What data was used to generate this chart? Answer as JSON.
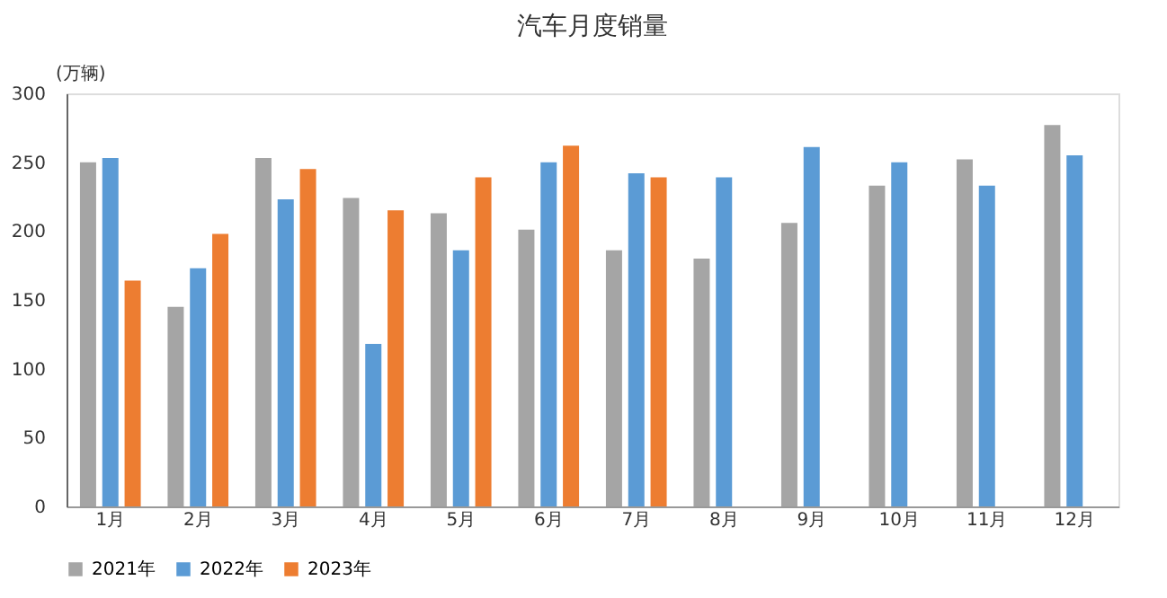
{
  "chart_data": {
    "type": "bar",
    "title": "汽车月度销量",
    "ylabel": "(万辆)",
    "categories": [
      "1月",
      "2月",
      "3月",
      "4月",
      "5月",
      "6月",
      "7月",
      "8月",
      "9月",
      "10月",
      "11月",
      "12月"
    ],
    "series": [
      {
        "name": "2021年",
        "color": "#a5a5a5",
        "values": [
          250,
          145,
          253,
          224,
          213,
          201,
          186,
          180,
          206,
          233,
          252,
          277
        ]
      },
      {
        "name": "2022年",
        "color": "#5b9bd5",
        "values": [
          253,
          173,
          223,
          118,
          186,
          250,
          242,
          239,
          261,
          250,
          233,
          255
        ]
      },
      {
        "name": "2023年",
        "color": "#ed7d31",
        "values": [
          164,
          198,
          245,
          215,
          239,
          262,
          239,
          null,
          null,
          null,
          null,
          null
        ]
      }
    ],
    "ylim": [
      0,
      300
    ],
    "yticks": [
      0,
      50,
      100,
      150,
      200,
      250,
      300
    ],
    "grid": false,
    "legend": "bottom"
  }
}
